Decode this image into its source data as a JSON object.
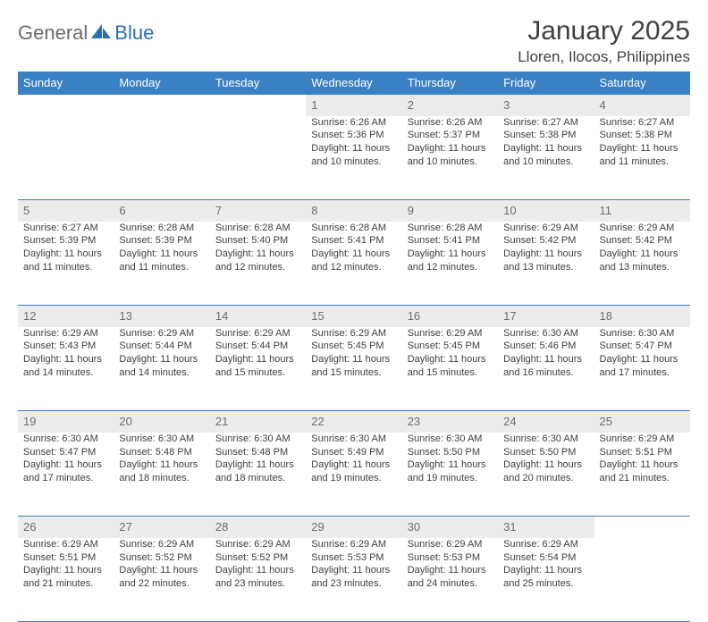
{
  "logo": {
    "part1": "General",
    "part2": "Blue"
  },
  "header": {
    "month_title": "January 2025",
    "location": "Lloren, Ilocos, Philippines"
  },
  "colors": {
    "header_bg": "#3a80c4",
    "header_fg": "#ffffff",
    "daynum_bg": "#ececec",
    "daynum_fg": "#6d6d6d",
    "rule": "#3a80c4",
    "text": "#404040",
    "logo_gray": "#6c6c6c",
    "logo_blue": "#2d6fb5"
  },
  "weekdays": [
    "Sunday",
    "Monday",
    "Tuesday",
    "Wednesday",
    "Thursday",
    "Friday",
    "Saturday"
  ],
  "weeks": [
    {
      "nums": [
        "",
        "",
        "",
        "1",
        "2",
        "3",
        "4"
      ],
      "cells": [
        null,
        null,
        null,
        {
          "sr": "Sunrise: 6:26 AM",
          "ss": "Sunset: 5:36 PM",
          "dl": "Daylight: 11 hours and 10 minutes."
        },
        {
          "sr": "Sunrise: 6:26 AM",
          "ss": "Sunset: 5:37 PM",
          "dl": "Daylight: 11 hours and 10 minutes."
        },
        {
          "sr": "Sunrise: 6:27 AM",
          "ss": "Sunset: 5:38 PM",
          "dl": "Daylight: 11 hours and 10 minutes."
        },
        {
          "sr": "Sunrise: 6:27 AM",
          "ss": "Sunset: 5:38 PM",
          "dl": "Daylight: 11 hours and 11 minutes."
        }
      ]
    },
    {
      "nums": [
        "5",
        "6",
        "7",
        "8",
        "9",
        "10",
        "11"
      ],
      "cells": [
        {
          "sr": "Sunrise: 6:27 AM",
          "ss": "Sunset: 5:39 PM",
          "dl": "Daylight: 11 hours and 11 minutes."
        },
        {
          "sr": "Sunrise: 6:28 AM",
          "ss": "Sunset: 5:39 PM",
          "dl": "Daylight: 11 hours and 11 minutes."
        },
        {
          "sr": "Sunrise: 6:28 AM",
          "ss": "Sunset: 5:40 PM",
          "dl": "Daylight: 11 hours and 12 minutes."
        },
        {
          "sr": "Sunrise: 6:28 AM",
          "ss": "Sunset: 5:41 PM",
          "dl": "Daylight: 11 hours and 12 minutes."
        },
        {
          "sr": "Sunrise: 6:28 AM",
          "ss": "Sunset: 5:41 PM",
          "dl": "Daylight: 11 hours and 12 minutes."
        },
        {
          "sr": "Sunrise: 6:29 AM",
          "ss": "Sunset: 5:42 PM",
          "dl": "Daylight: 11 hours and 13 minutes."
        },
        {
          "sr": "Sunrise: 6:29 AM",
          "ss": "Sunset: 5:42 PM",
          "dl": "Daylight: 11 hours and 13 minutes."
        }
      ]
    },
    {
      "nums": [
        "12",
        "13",
        "14",
        "15",
        "16",
        "17",
        "18"
      ],
      "cells": [
        {
          "sr": "Sunrise: 6:29 AM",
          "ss": "Sunset: 5:43 PM",
          "dl": "Daylight: 11 hours and 14 minutes."
        },
        {
          "sr": "Sunrise: 6:29 AM",
          "ss": "Sunset: 5:44 PM",
          "dl": "Daylight: 11 hours and 14 minutes."
        },
        {
          "sr": "Sunrise: 6:29 AM",
          "ss": "Sunset: 5:44 PM",
          "dl": "Daylight: 11 hours and 15 minutes."
        },
        {
          "sr": "Sunrise: 6:29 AM",
          "ss": "Sunset: 5:45 PM",
          "dl": "Daylight: 11 hours and 15 minutes."
        },
        {
          "sr": "Sunrise: 6:29 AM",
          "ss": "Sunset: 5:45 PM",
          "dl": "Daylight: 11 hours and 15 minutes."
        },
        {
          "sr": "Sunrise: 6:30 AM",
          "ss": "Sunset: 5:46 PM",
          "dl": "Daylight: 11 hours and 16 minutes."
        },
        {
          "sr": "Sunrise: 6:30 AM",
          "ss": "Sunset: 5:47 PM",
          "dl": "Daylight: 11 hours and 17 minutes."
        }
      ]
    },
    {
      "nums": [
        "19",
        "20",
        "21",
        "22",
        "23",
        "24",
        "25"
      ],
      "cells": [
        {
          "sr": "Sunrise: 6:30 AM",
          "ss": "Sunset: 5:47 PM",
          "dl": "Daylight: 11 hours and 17 minutes."
        },
        {
          "sr": "Sunrise: 6:30 AM",
          "ss": "Sunset: 5:48 PM",
          "dl": "Daylight: 11 hours and 18 minutes."
        },
        {
          "sr": "Sunrise: 6:30 AM",
          "ss": "Sunset: 5:48 PM",
          "dl": "Daylight: 11 hours and 18 minutes."
        },
        {
          "sr": "Sunrise: 6:30 AM",
          "ss": "Sunset: 5:49 PM",
          "dl": "Daylight: 11 hours and 19 minutes."
        },
        {
          "sr": "Sunrise: 6:30 AM",
          "ss": "Sunset: 5:50 PM",
          "dl": "Daylight: 11 hours and 19 minutes."
        },
        {
          "sr": "Sunrise: 6:30 AM",
          "ss": "Sunset: 5:50 PM",
          "dl": "Daylight: 11 hours and 20 minutes."
        },
        {
          "sr": "Sunrise: 6:29 AM",
          "ss": "Sunset: 5:51 PM",
          "dl": "Daylight: 11 hours and 21 minutes."
        }
      ]
    },
    {
      "nums": [
        "26",
        "27",
        "28",
        "29",
        "30",
        "31",
        ""
      ],
      "cells": [
        {
          "sr": "Sunrise: 6:29 AM",
          "ss": "Sunset: 5:51 PM",
          "dl": "Daylight: 11 hours and 21 minutes."
        },
        {
          "sr": "Sunrise: 6:29 AM",
          "ss": "Sunset: 5:52 PM",
          "dl": "Daylight: 11 hours and 22 minutes."
        },
        {
          "sr": "Sunrise: 6:29 AM",
          "ss": "Sunset: 5:52 PM",
          "dl": "Daylight: 11 hours and 23 minutes."
        },
        {
          "sr": "Sunrise: 6:29 AM",
          "ss": "Sunset: 5:53 PM",
          "dl": "Daylight: 11 hours and 23 minutes."
        },
        {
          "sr": "Sunrise: 6:29 AM",
          "ss": "Sunset: 5:53 PM",
          "dl": "Daylight: 11 hours and 24 minutes."
        },
        {
          "sr": "Sunrise: 6:29 AM",
          "ss": "Sunset: 5:54 PM",
          "dl": "Daylight: 11 hours and 25 minutes."
        },
        null
      ]
    }
  ]
}
